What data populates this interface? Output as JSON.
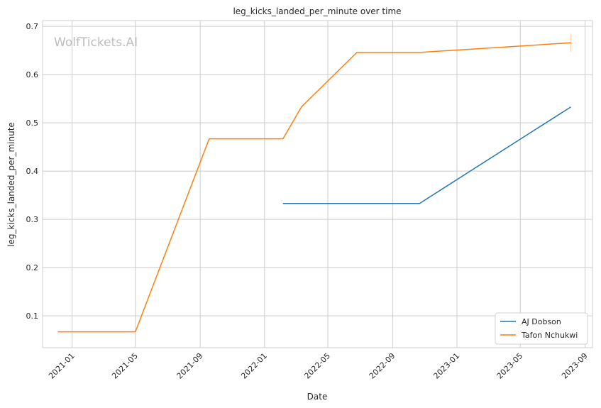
{
  "chart_data": {
    "type": "line",
    "title": "leg_kicks_landed_per_minute over time",
    "xlabel": "Date",
    "ylabel": "leg_kicks_landed_per_minute",
    "watermark": "WolfTickets.AI",
    "x_axis": {
      "type": "date",
      "range": [
        "2020-11-06",
        "2023-09-15"
      ],
      "ticks": [
        "2021-01",
        "2021-05",
        "2021-09",
        "2022-01",
        "2022-05",
        "2022-09",
        "2023-01",
        "2023-05",
        "2023-09"
      ]
    },
    "y_axis": {
      "range": [
        0.034,
        0.712
      ],
      "ticks": [
        0.1,
        0.2,
        0.3,
        0.4,
        0.5,
        0.6,
        0.7
      ]
    },
    "grid": true,
    "legend_position": "lower-right",
    "series": [
      {
        "name": "AJ Dobson",
        "color": "#1f77b4",
        "x": [
          "2022-02-05",
          "2022-10-22",
          "2023-08-05"
        ],
        "y": [
          0.333,
          0.333,
          0.533
        ]
      },
      {
        "name": "Tafon Nchukwi",
        "color": "#ff7f0e",
        "x": [
          "2020-12-05",
          "2021-05-01",
          "2021-09-18",
          "2022-02-05",
          "2022-03-12",
          "2022-06-25",
          "2022-10-22",
          "2023-08-05"
        ],
        "y": [
          0.067,
          0.067,
          0.467,
          0.467,
          0.533,
          0.646,
          0.646,
          0.666
        ]
      }
    ]
  }
}
